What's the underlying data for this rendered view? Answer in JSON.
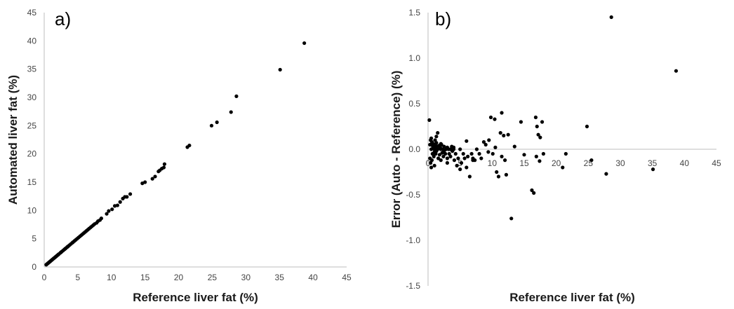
{
  "chart_data": [
    {
      "type": "scatter",
      "panel_label": "a)",
      "xlabel": "Reference liver fat (%)",
      "ylabel": "Automated liver fat (%)",
      "xlim": [
        0,
        45
      ],
      "ylim": [
        0,
        45
      ],
      "xticks": [
        "0",
        "5",
        "10",
        "15",
        "20",
        "25",
        "30",
        "35",
        "40",
        "45"
      ],
      "yticks": [
        "0",
        "5",
        "10",
        "15",
        "20",
        "25",
        "30",
        "35",
        "40",
        "45"
      ],
      "grid": false,
      "point_color": "#000000",
      "x": [
        0.3,
        0.4,
        0.5,
        0.6,
        0.7,
        0.8,
        0.9,
        1.0,
        1.1,
        1.2,
        1.3,
        1.4,
        1.5,
        1.6,
        1.7,
        1.8,
        1.9,
        2.0,
        2.1,
        2.2,
        2.4,
        2.5,
        2.6,
        2.8,
        3.0,
        3.1,
        3.2,
        3.4,
        3.5,
        3.6,
        3.8,
        4.0,
        4.2,
        4.3,
        4.5,
        4.7,
        4.9,
        5.1,
        5.3,
        5.5,
        5.7,
        5.9,
        6.1,
        6.3,
        6.5,
        6.7,
        6.9,
        7.1,
        7.3,
        7.5,
        7.8,
        8.0,
        8.3,
        8.5,
        9.3,
        9.6,
        10.1,
        10.5,
        10.9,
        11.3,
        11.7,
        12.0,
        12.3,
        12.8,
        14.6,
        15.0,
        16.1,
        16.5,
        17.0,
        17.2,
        17.5,
        17.8,
        17.9,
        21.3,
        21.6,
        24.9,
        25.7,
        27.8,
        28.6,
        35.1,
        38.7
      ],
      "y": [
        0.4,
        0.5,
        0.6,
        0.7,
        0.8,
        0.9,
        1.0,
        1.1,
        1.2,
        1.3,
        1.4,
        1.5,
        1.6,
        1.7,
        1.8,
        1.9,
        2.0,
        2.1,
        2.2,
        2.3,
        2.5,
        2.6,
        2.7,
        2.9,
        3.1,
        3.2,
        3.3,
        3.5,
        3.6,
        3.7,
        3.9,
        4.1,
        4.3,
        4.4,
        4.6,
        4.8,
        5.0,
        5.2,
        5.4,
        5.6,
        5.8,
        6.0,
        6.2,
        6.4,
        6.6,
        6.8,
        7.0,
        7.2,
        7.4,
        7.6,
        7.8,
        8.1,
        8.3,
        8.6,
        9.4,
        9.9,
        10.2,
        10.8,
        10.9,
        11.5,
        12.1,
        12.4,
        12.4,
        12.9,
        14.8,
        15.0,
        15.6,
        16.0,
        16.9,
        17.1,
        17.4,
        17.6,
        18.2,
        21.2,
        21.5,
        25.0,
        25.6,
        27.4,
        30.2,
        34.9,
        39.6
      ]
    },
    {
      "type": "scatter",
      "panel_label": "b)",
      "xlabel": "Reference liver fat (%)",
      "ylabel": "Error (Auto - Reference)  (%)",
      "xlim": [
        0,
        45
      ],
      "ylim": [
        -1.5,
        1.5
      ],
      "xticks": [
        "0",
        "5",
        "10",
        "15",
        "20",
        "25",
        "30",
        "35",
        "40",
        "45"
      ],
      "yticks": [
        "1.5",
        "1.0",
        "0.5",
        "0.0",
        "-0.5",
        "-1.0",
        "-1.5"
      ],
      "grid": false,
      "point_color": "#000000",
      "x": [
        0.2,
        0.3,
        0.3,
        0.4,
        0.4,
        0.5,
        0.5,
        0.6,
        0.6,
        0.7,
        0.7,
        0.8,
        0.8,
        0.9,
        0.9,
        1.0,
        1.0,
        1.1,
        1.1,
        1.2,
        1.2,
        1.3,
        1.3,
        1.4,
        1.5,
        1.5,
        1.6,
        1.7,
        1.8,
        1.9,
        2.0,
        2.0,
        2.1,
        2.2,
        2.3,
        2.4,
        2.5,
        2.5,
        2.7,
        2.8,
        3.0,
        3.0,
        3.2,
        3.3,
        3.5,
        3.5,
        3.7,
        3.8,
        4.0,
        4.1,
        4.3,
        4.5,
        4.7,
        5.0,
        5.2,
        5.5,
        5.7,
        6.0,
        6.2,
        6.5,
        6.8,
        7.0,
        7.3,
        7.6,
        8.0,
        8.3,
        8.7,
        9.0,
        9.4,
        9.8,
        10.1,
        10.4,
        10.7,
        11.0,
        11.3,
        11.5,
        11.8,
        12.0,
        12.2,
        13.0,
        14.5,
        15.0,
        16.2,
        16.5,
        16.8,
        17.0,
        17.2,
        17.5,
        17.8,
        18.0,
        21.0,
        21.5,
        24.8,
        25.5,
        27.8,
        28.6,
        35.1,
        38.7,
        0.5,
        1.0,
        2.0,
        3.0,
        4.0,
        5.0,
        6.0,
        7.0,
        0.7,
        1.3,
        9.5,
        10.5,
        11.5,
        12.5,
        13.5,
        16.9,
        17.4
      ],
      "y": [
        0.32,
        0.05,
        -0.1,
        0.1,
        -0.15,
        0.0,
        -0.2,
        0.08,
        -0.12,
        0.04,
        -0.05,
        0.02,
        0.06,
        -0.08,
        0.03,
        0.0,
        -0.03,
        0.1,
        0.05,
        -0.05,
        0.02,
        0.07,
        -0.02,
        0.03,
        0.0,
        0.18,
        -0.1,
        0.04,
        -0.06,
        0.02,
        0.0,
        -0.12,
        0.05,
        -0.04,
        0.0,
        -0.08,
        0.03,
        -0.02,
        -0.05,
        0.0,
        0.02,
        -0.1,
        0.0,
        -0.05,
        0.0,
        -0.08,
        0.03,
        -0.02,
        0.0,
        -0.12,
        -0.05,
        -0.18,
        -0.1,
        0.0,
        -0.15,
        -0.05,
        -0.1,
        -0.2,
        -0.08,
        -0.3,
        -0.05,
        -0.1,
        -0.12,
        0.0,
        -0.05,
        -0.1,
        0.08,
        0.05,
        -0.03,
        0.35,
        -0.05,
        0.33,
        -0.25,
        -0.3,
        0.18,
        0.4,
        0.15,
        -0.12,
        -0.28,
        -0.76,
        0.3,
        -0.06,
        -0.45,
        -0.48,
        0.35,
        0.25,
        0.16,
        0.13,
        0.3,
        -0.05,
        -0.2,
        -0.05,
        0.25,
        -0.12,
        -0.27,
        1.45,
        -0.22,
        0.86,
        0.12,
        -0.18,
        0.06,
        -0.15,
        0.02,
        -0.22,
        0.09,
        -0.12,
        -0.05,
        0.14,
        0.1,
        0.02,
        -0.08,
        0.16,
        0.03,
        -0.08,
        -0.13
      ]
    }
  ]
}
